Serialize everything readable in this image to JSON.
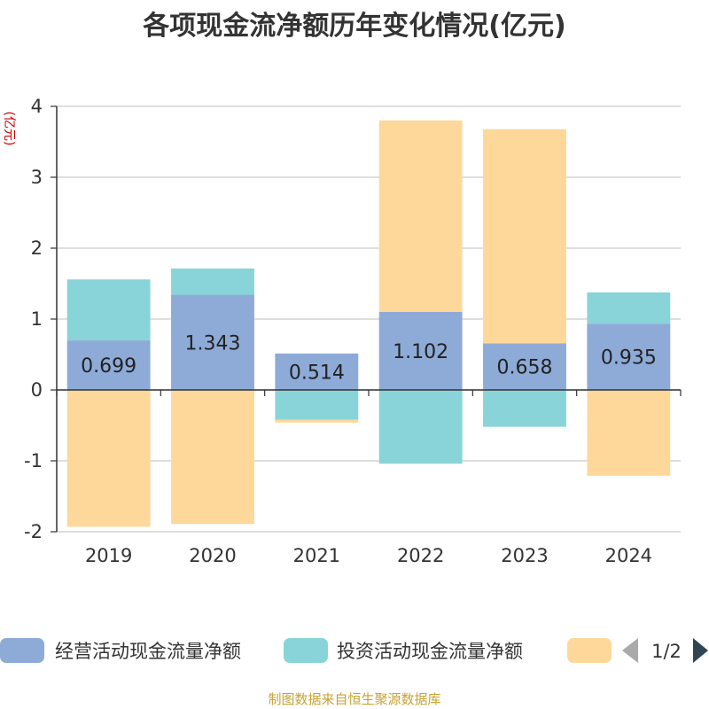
{
  "chart_data": {
    "type": "bar",
    "stacked": true,
    "title": "各项现金流净额历年变化情况(亿元)",
    "ylabel": "(亿元)",
    "ylim": [
      -2,
      4
    ],
    "yticks": [
      -2,
      -1,
      0,
      1,
      2,
      3,
      4
    ],
    "grid": true,
    "categories": [
      "2019",
      "2020",
      "2021",
      "2022",
      "2023",
      "2024"
    ],
    "series": [
      {
        "name": "经营活动现金流量净额",
        "color": "#8eabd8",
        "values": [
          0.699,
          1.343,
          0.514,
          1.102,
          0.658,
          0.935
        ],
        "labels": [
          "0.699",
          "1.343",
          "0.514",
          "1.102",
          "0.658",
          "0.935"
        ]
      },
      {
        "name": "投资活动现金流量净额",
        "color": "#88d4d8",
        "values": [
          0.86,
          0.37,
          -0.42,
          -1.04,
          -0.52,
          0.44
        ]
      },
      {
        "name": "",
        "color": "#fdd89a",
        "values": [
          -1.93,
          -1.89,
          -0.04,
          2.7,
          3.02,
          -1.21
        ]
      }
    ],
    "legend": {
      "placement": "bottom",
      "page": "1/2"
    },
    "source": "制图数据来自恒生聚源数据库"
  }
}
